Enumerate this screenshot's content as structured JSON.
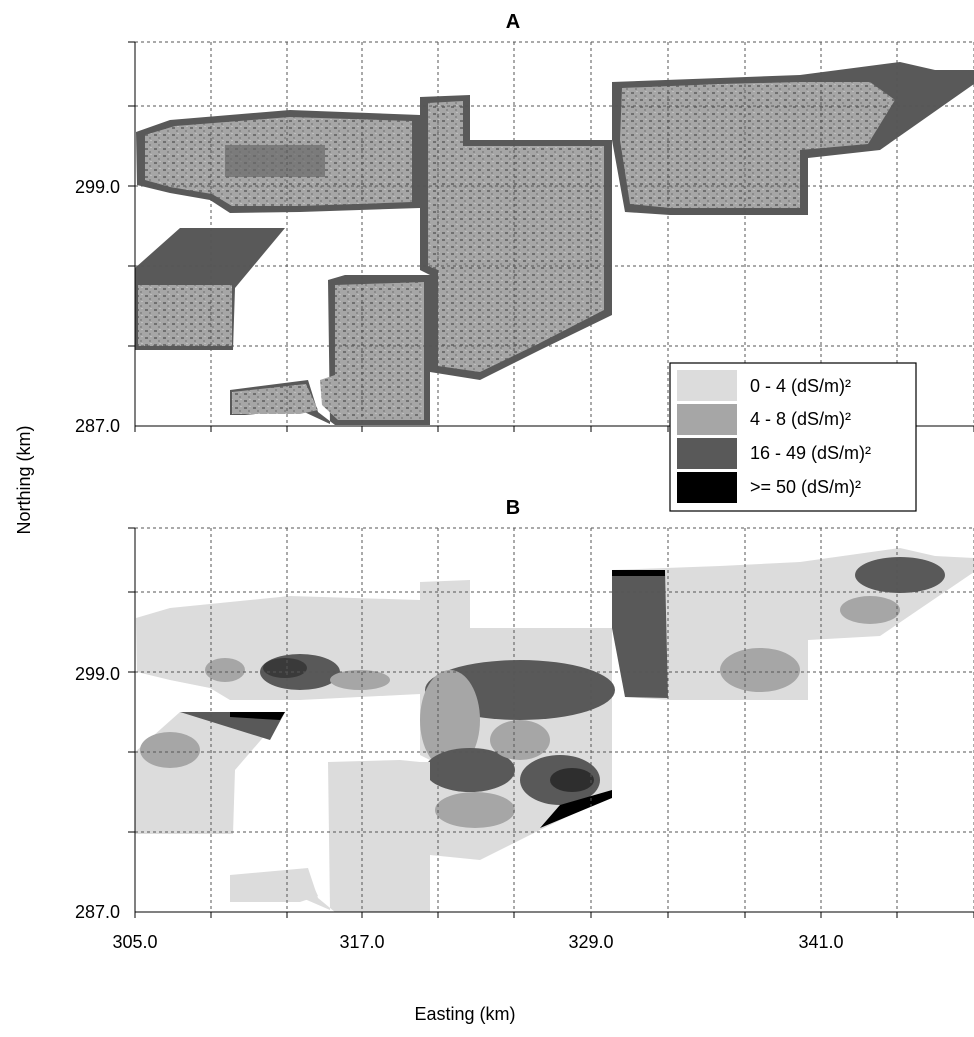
{
  "figure": {
    "panels": [
      {
        "id": "A",
        "label": "A",
        "y_ticks": [
          "299.0",
          "287.0"
        ]
      },
      {
        "id": "B",
        "label": "B",
        "y_ticks": [
          "299.0",
          "287.0"
        ],
        "x_ticks": [
          "305.0",
          "317.0",
          "329.0",
          "341.0"
        ]
      }
    ],
    "xlabel": "Easting (km)",
    "ylabel": "Northing (km)",
    "legend": {
      "placement": "right of panel A, lower half",
      "items": [
        {
          "label": "0 - 4 (dS/m)²",
          "color": "#dcdcdc"
        },
        {
          "label": "4 - 8 (dS/m)²",
          "color": "#a6a6a6"
        },
        {
          "label": "16 - 49 (dS/m)²",
          "color": "#595959"
        },
        {
          "label": ">= 50 (dS/m)²",
          "color": "#000000"
        }
      ]
    },
    "grid": true,
    "colors": {
      "class_0_4": "#dcdcdc",
      "class_4_8": "#a6a6a6",
      "class_16_49": "#595959",
      "class_50_plus": "#000000",
      "grid": "#555555"
    }
  }
}
